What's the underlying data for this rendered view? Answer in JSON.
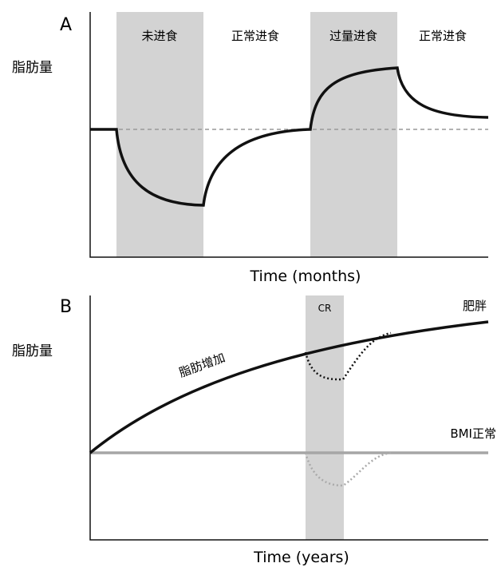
{
  "panel_a": {
    "label": "A",
    "y_label": "脂肪量",
    "x_label": "Time (months)",
    "phases": [
      "未进食",
      "正常进食",
      "过量进食",
      "正常进食"
    ]
  },
  "panel_b": {
    "label": "B",
    "y_label": "脂肪量",
    "x_label": "Time (years)",
    "shade_label": "CR",
    "obese_label": "肥胖",
    "gain_label": "脂肪增加",
    "normal_label": "BMI正常"
  }
}
